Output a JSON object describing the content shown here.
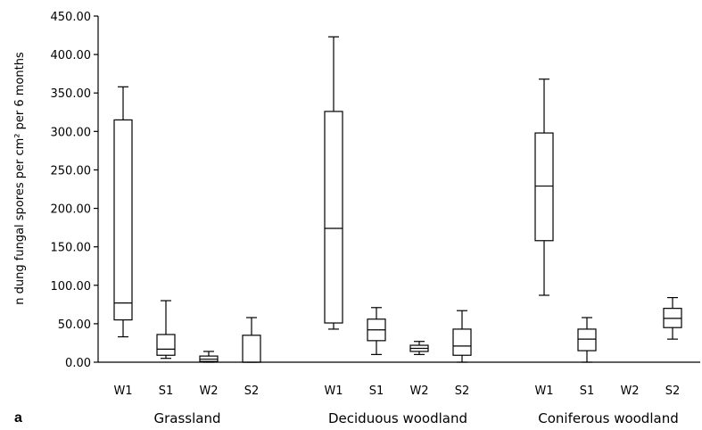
{
  "chart_data": {
    "type": "boxplot",
    "panel_label": "a",
    "ylabel": "n dung fungal spores per cm² per 6 months",
    "ylim": [
      0,
      450
    ],
    "yticks": [
      "0.00",
      "50.00",
      "100.00",
      "150.00",
      "200.00",
      "250.00",
      "300.00",
      "350.00",
      "400.00",
      "450.00"
    ],
    "groups": [
      {
        "name": "Grassland",
        "boxes": [
          {
            "label": "W1",
            "min": 33,
            "q1": 55,
            "median": 77,
            "q3": 315,
            "max": 358
          },
          {
            "label": "S1",
            "min": 5,
            "q1": 9,
            "median": 17,
            "q3": 36,
            "max": 80
          },
          {
            "label": "W2",
            "min": 0,
            "q1": 1,
            "median": 4,
            "q3": 8,
            "max": 14
          },
          {
            "label": "S2",
            "min": 0,
            "q1": 0,
            "median": 0,
            "q3": 35,
            "max": 58
          }
        ]
      },
      {
        "name": "Deciduous woodland",
        "boxes": [
          {
            "label": "W1",
            "min": 43,
            "q1": 51,
            "median": 174,
            "q3": 326,
            "max": 423
          },
          {
            "label": "S1",
            "min": 10,
            "q1": 28,
            "median": 42,
            "q3": 56,
            "max": 71
          },
          {
            "label": "W2",
            "min": 10,
            "q1": 14,
            "median": 18,
            "q3": 22,
            "max": 27
          },
          {
            "label": "S2",
            "min": 0,
            "q1": 9,
            "median": 21,
            "q3": 43,
            "max": 67
          }
        ]
      },
      {
        "name": "Coniferous woodland",
        "boxes": [
          {
            "label": "W1",
            "min": 87,
            "q1": 158,
            "median": 229,
            "q3": 298,
            "max": 368
          },
          {
            "label": "S1",
            "min": 0,
            "q1": 15,
            "median": 30,
            "q3": 43,
            "max": 58
          },
          {
            "label": "W2",
            "min": null,
            "q1": null,
            "median": null,
            "q3": null,
            "max": null
          },
          {
            "label": "S2",
            "min": 30,
            "q1": 45,
            "median": 57,
            "q3": 70,
            "max": 84
          }
        ]
      }
    ]
  }
}
